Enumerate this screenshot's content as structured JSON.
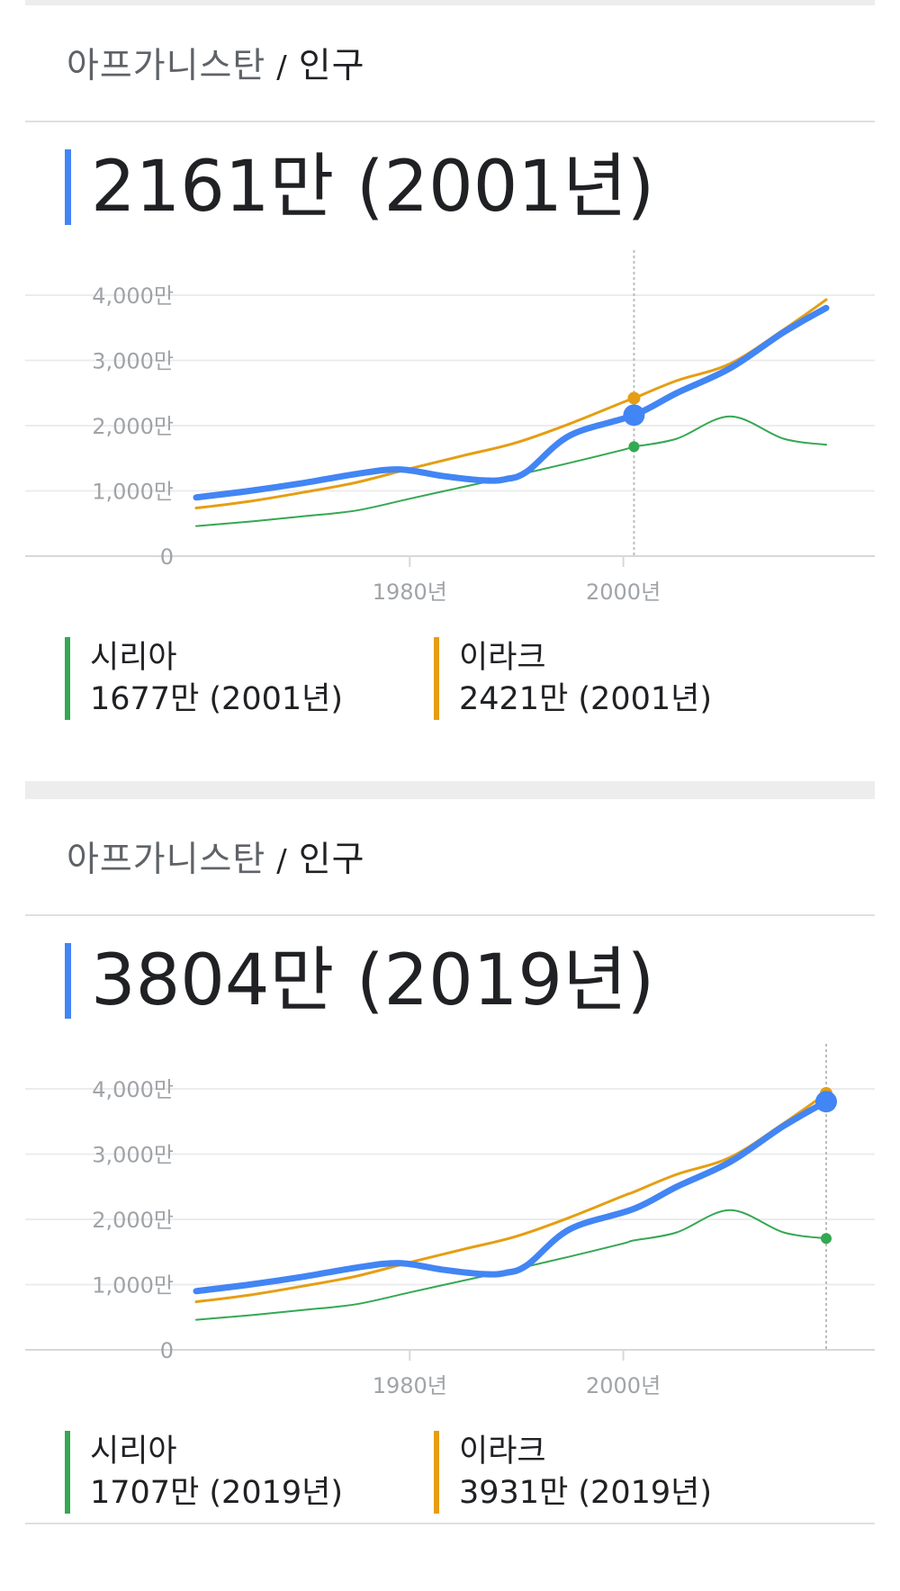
{
  "cards": [
    {
      "breadcrumb": {
        "country": "아프가니스탄",
        "separator": "/",
        "metric": "인구"
      },
      "headline": "2161만 (2001년)",
      "legend": [
        {
          "name": "시리아",
          "value": "1677만 (2001년)",
          "color": "#34a853"
        },
        {
          "name": "이라크",
          "value": "2421만 (2001년)",
          "color": "#e59e13"
        }
      ]
    },
    {
      "breadcrumb": {
        "country": "아프가니스탄",
        "separator": "/",
        "metric": "인구"
      },
      "headline": "3804만 (2019년)",
      "legend": [
        {
          "name": "시리아",
          "value": "1707만 (2019년)",
          "color": "#34a853"
        },
        {
          "name": "이라크",
          "value": "3931만 (2019년)",
          "color": "#e59e13"
        }
      ]
    }
  ],
  "chart_data": [
    {
      "type": "line",
      "title": "",
      "ylabel": "",
      "xlabel": "",
      "ylim": [
        0,
        4000
      ],
      "xlim": [
        1960,
        2019
      ],
      "yticks": [
        {
          "value": 0,
          "label": "0"
        },
        {
          "value": 1000,
          "label": "1,000만"
        },
        {
          "value": 2000,
          "label": "2,000만"
        },
        {
          "value": 3000,
          "label": "3,000만"
        },
        {
          "value": 4000,
          "label": "4,000만"
        }
      ],
      "xticks": [
        {
          "value": 1980,
          "label": "1980년"
        },
        {
          "value": 2000,
          "label": "2000년"
        }
      ],
      "grid": true,
      "highlight_x": 2001,
      "series": [
        {
          "name": "이라크",
          "color": "#e59e13",
          "width": 3,
          "x": [
            1960,
            1965,
            1970,
            1975,
            1980,
            1985,
            1990,
            1995,
            2000,
            2001,
            2005,
            2010,
            2015,
            2019
          ],
          "y": [
            736,
            840,
            977,
            1130,
            1340,
            1540,
            1740,
            2030,
            2360,
            2421,
            2690,
            2950,
            3470,
            3931
          ],
          "marker_x": 2001,
          "marker_y": 2421,
          "marker_r": 7
        },
        {
          "name": "시리아",
          "color": "#34a853",
          "width": 2,
          "x": [
            1960,
            1965,
            1970,
            1975,
            1980,
            1985,
            1990,
            1995,
            2000,
            2001,
            2005,
            2010,
            2015,
            2019
          ],
          "y": [
            460,
            530,
            610,
            700,
            880,
            1060,
            1240,
            1430,
            1630,
            1677,
            1800,
            2140,
            1800,
            1707
          ],
          "marker_x": 2001,
          "marker_y": 1677,
          "marker_r": 6
        },
        {
          "name": "아프가니스탄",
          "color": "#4285f4",
          "width": 7,
          "x": [
            1960,
            1965,
            1970,
            1975,
            1979,
            1983,
            1987,
            1989,
            1991,
            1995,
            2001,
            2005,
            2010,
            2015,
            2019
          ],
          "y": [
            900,
            1000,
            1120,
            1260,
            1330,
            1230,
            1160,
            1180,
            1300,
            1850,
            2161,
            2500,
            2880,
            3430,
            3804
          ],
          "marker_x": 2001,
          "marker_y": 2161,
          "marker_r": 12
        }
      ]
    },
    {
      "type": "line",
      "title": "",
      "ylabel": "",
      "xlabel": "",
      "ylim": [
        0,
        4000
      ],
      "xlim": [
        1960,
        2019
      ],
      "yticks": [
        {
          "value": 0,
          "label": "0"
        },
        {
          "value": 1000,
          "label": "1,000만"
        },
        {
          "value": 2000,
          "label": "2,000만"
        },
        {
          "value": 3000,
          "label": "3,000만"
        },
        {
          "value": 4000,
          "label": "4,000만"
        }
      ],
      "xticks": [
        {
          "value": 1980,
          "label": "1980년"
        },
        {
          "value": 2000,
          "label": "2000년"
        }
      ],
      "grid": true,
      "highlight_x": 2019,
      "series": [
        {
          "name": "이라크",
          "color": "#e59e13",
          "width": 3,
          "x": [
            1960,
            1965,
            1970,
            1975,
            1980,
            1985,
            1990,
            1995,
            2000,
            2001,
            2005,
            2010,
            2015,
            2019
          ],
          "y": [
            736,
            840,
            977,
            1130,
            1340,
            1540,
            1740,
            2030,
            2360,
            2421,
            2690,
            2950,
            3470,
            3931
          ],
          "marker_x": 2019,
          "marker_y": 3931,
          "marker_r": 7
        },
        {
          "name": "시리아",
          "color": "#34a853",
          "width": 2,
          "x": [
            1960,
            1965,
            1970,
            1975,
            1980,
            1985,
            1990,
            1995,
            2000,
            2001,
            2005,
            2010,
            2015,
            2019
          ],
          "y": [
            460,
            530,
            610,
            700,
            880,
            1060,
            1240,
            1430,
            1630,
            1677,
            1800,
            2140,
            1800,
            1707
          ],
          "marker_x": 2019,
          "marker_y": 1707,
          "marker_r": 6
        },
        {
          "name": "아프가니스탄",
          "color": "#4285f4",
          "width": 7,
          "x": [
            1960,
            1965,
            1970,
            1975,
            1979,
            1983,
            1987,
            1989,
            1991,
            1995,
            2001,
            2005,
            2010,
            2015,
            2019
          ],
          "y": [
            900,
            1000,
            1120,
            1260,
            1330,
            1230,
            1160,
            1180,
            1300,
            1850,
            2161,
            2500,
            2880,
            3430,
            3804
          ],
          "marker_x": 2019,
          "marker_y": 3804,
          "marker_r": 12
        }
      ]
    }
  ]
}
